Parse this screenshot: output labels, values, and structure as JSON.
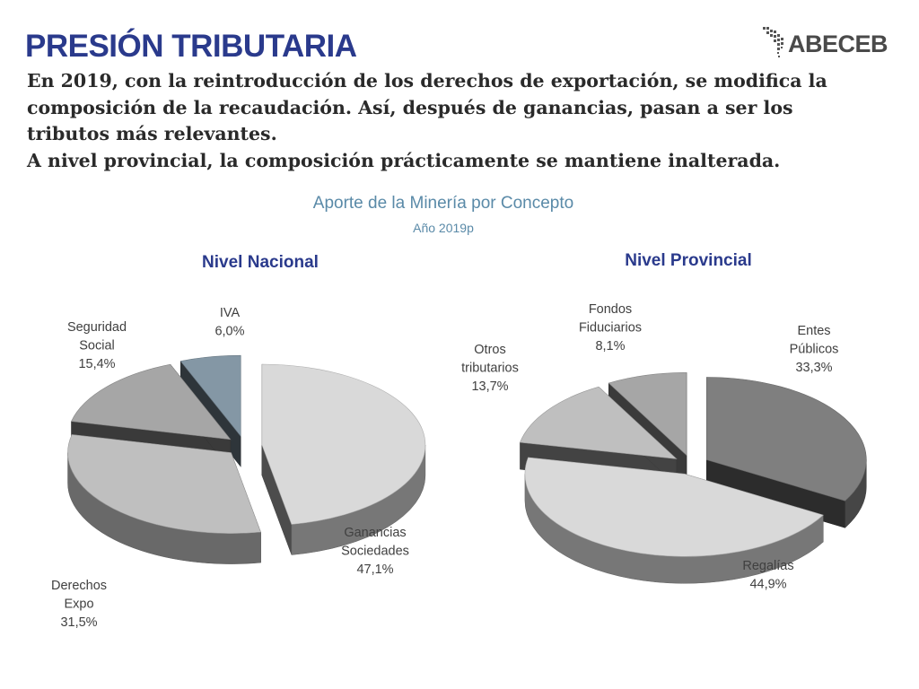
{
  "header": {
    "title": "PRESIÓN TRIBUTARIA",
    "logo_text": "ABECEB",
    "subtitle_lines": [
      "En 2019, con la reintroducción de los derechos de exportación, se modifica la",
      "composición de la recaudación. Así, después de ganancias, pasan a ser los",
      "tributos más relevantes.",
      "A nivel provincial, la composición prácticamente se mantiene inalterada."
    ]
  },
  "colors": {
    "title": "#2a3a8c",
    "chart_title": "#5a8aa8",
    "label": "#404040"
  },
  "chart_data": {
    "type": "pie",
    "title": "Aporte de la Minería por Concepto",
    "subtitle": "Año 2019p",
    "panels": [
      {
        "title": "Nivel Nacional",
        "slices": [
          {
            "label_lines": [
              "Ganancias",
              "Sociedades",
              "47,1%"
            ],
            "value": 47.1,
            "color": "#d9d9d9"
          },
          {
            "label_lines": [
              "Derechos",
              "Expo",
              "31,5%"
            ],
            "value": 31.5,
            "color": "#bfbfbf"
          },
          {
            "label_lines": [
              "Seguridad",
              "Social",
              "15,4%"
            ],
            "value": 15.4,
            "color": "#a6a6a6"
          },
          {
            "label_lines": [
              "IVA",
              "6,0%"
            ],
            "value": 6.0,
            "color": "#8497a5"
          }
        ]
      },
      {
        "title": "Nivel Provincial",
        "slices": [
          {
            "label_lines": [
              "Entes",
              "Públicos",
              "33,3%"
            ],
            "value": 33.3,
            "color": "#7f7f7f"
          },
          {
            "label_lines": [
              "Regalías",
              "44,9%"
            ],
            "value": 44.9,
            "color": "#d9d9d9"
          },
          {
            "label_lines": [
              "Otros",
              "tributarios",
              "13,7%"
            ],
            "value": 13.7,
            "color": "#bfbfbf"
          },
          {
            "label_lines": [
              "Fondos",
              "Fiduciarios",
              "8,1%"
            ],
            "value": 8.1,
            "color": "#a6a6a6"
          }
        ]
      }
    ]
  }
}
